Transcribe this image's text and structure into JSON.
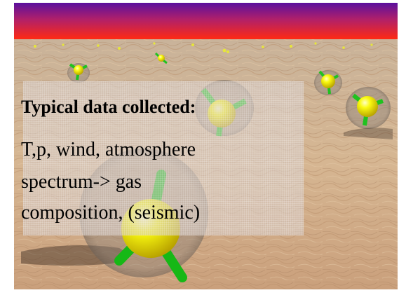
{
  "slide": {
    "heading": "Typical data collected:",
    "body_lines": [
      "T,p, wind, atmosphere",
      "spectrum-> gas",
      "composition, (seismic)"
    ]
  },
  "colors": {
    "sky_top": "#6a1a9a",
    "sky_bottom": "#ff2a1a",
    "ground": "#c8a888",
    "probe_body": "#f2f200",
    "probe_legs": "#22cc22"
  },
  "icons": [
    "probe-icon"
  ]
}
